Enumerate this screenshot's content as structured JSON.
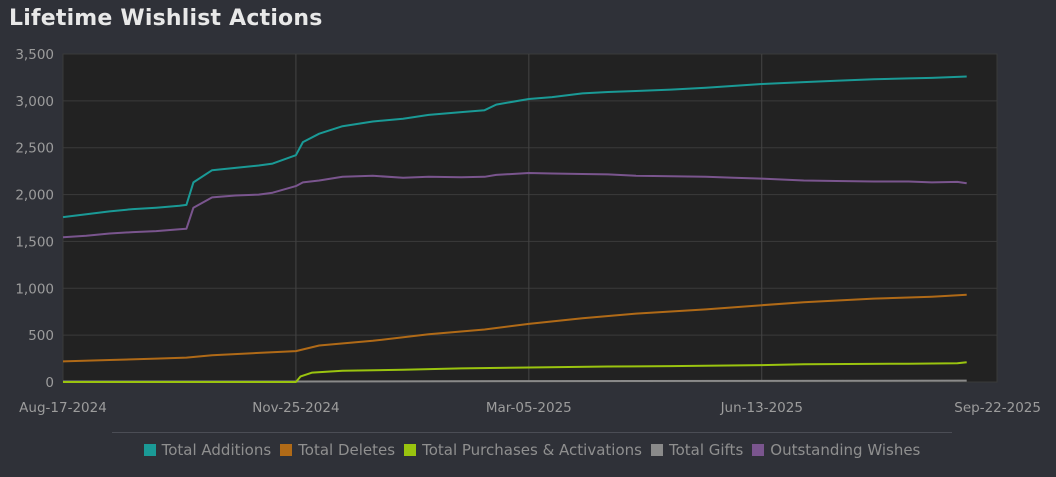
{
  "title": "Lifetime Wishlist Actions",
  "chart_data": {
    "type": "line",
    "title": "Lifetime Wishlist Actions",
    "xlabel": "",
    "ylabel": "",
    "x_ticks": [
      "Aug-17-2024",
      "Nov-25-2024",
      "Mar-05-2025",
      "Jun-13-2025",
      "Sep-22-2025"
    ],
    "x_range": [
      "2024-08-17",
      "2025-09-22"
    ],
    "ylim": [
      0,
      3500
    ],
    "y_ticks": [
      0,
      500,
      1000,
      1500,
      2000,
      2500,
      3000,
      3500
    ],
    "y_tick_labels": [
      "0",
      "500",
      "1,000",
      "1,500",
      "2,000",
      "2,500",
      "3,000",
      "3,500"
    ],
    "grid": true,
    "legend_position": "bottom",
    "series": [
      {
        "name": "Total Additions",
        "color": "#1a9a96",
        "points": [
          [
            "2024-08-17",
            1760
          ],
          [
            "2024-08-27",
            1790
          ],
          [
            "2024-09-06",
            1820
          ],
          [
            "2024-09-16",
            1845
          ],
          [
            "2024-09-26",
            1860
          ],
          [
            "2024-10-06",
            1880
          ],
          [
            "2024-10-09",
            1890
          ],
          [
            "2024-10-12",
            2130
          ],
          [
            "2024-10-20",
            2260
          ],
          [
            "2024-10-30",
            2285
          ],
          [
            "2024-11-09",
            2310
          ],
          [
            "2024-11-15",
            2330
          ],
          [
            "2024-11-25",
            2420
          ],
          [
            "2024-11-28",
            2560
          ],
          [
            "2024-12-05",
            2650
          ],
          [
            "2024-12-15",
            2730
          ],
          [
            "2024-12-28",
            2780
          ],
          [
            "2025-01-10",
            2810
          ],
          [
            "2025-01-21",
            2850
          ],
          [
            "2025-02-04",
            2880
          ],
          [
            "2025-02-14",
            2900
          ],
          [
            "2025-02-19",
            2960
          ],
          [
            "2025-03-05",
            3020
          ],
          [
            "2025-03-15",
            3040
          ],
          [
            "2025-03-28",
            3080
          ],
          [
            "2025-04-08",
            3095
          ],
          [
            "2025-04-20",
            3105
          ],
          [
            "2025-05-05",
            3120
          ],
          [
            "2025-05-20",
            3140
          ],
          [
            "2025-06-01",
            3160
          ],
          [
            "2025-06-13",
            3180
          ],
          [
            "2025-07-01",
            3200
          ],
          [
            "2025-07-15",
            3215
          ],
          [
            "2025-07-31",
            3230
          ],
          [
            "2025-08-15",
            3240
          ],
          [
            "2025-08-25",
            3245
          ],
          [
            "2025-09-09",
            3260
          ]
        ]
      },
      {
        "name": "Total Deletes",
        "color": "#b06a17",
        "points": [
          [
            "2024-08-17",
            220
          ],
          [
            "2024-09-06",
            235
          ],
          [
            "2024-09-26",
            250
          ],
          [
            "2024-10-09",
            260
          ],
          [
            "2024-10-20",
            285
          ],
          [
            "2024-11-09",
            310
          ],
          [
            "2024-11-25",
            330
          ],
          [
            "2024-12-05",
            390
          ],
          [
            "2024-12-28",
            440
          ],
          [
            "2025-01-21",
            510
          ],
          [
            "2025-02-14",
            560
          ],
          [
            "2025-03-05",
            620
          ],
          [
            "2025-03-28",
            680
          ],
          [
            "2025-04-20",
            730
          ],
          [
            "2025-05-20",
            775
          ],
          [
            "2025-06-13",
            820
          ],
          [
            "2025-07-01",
            850
          ],
          [
            "2025-07-31",
            890
          ],
          [
            "2025-08-25",
            910
          ],
          [
            "2025-09-09",
            930
          ]
        ]
      },
      {
        "name": "Total Purchases & Activations",
        "color": "#9ac40f",
        "points": [
          [
            "2024-08-17",
            0
          ],
          [
            "2024-11-25",
            0
          ],
          [
            "2024-11-27",
            60
          ],
          [
            "2024-12-02",
            100
          ],
          [
            "2024-12-15",
            120
          ],
          [
            "2025-01-10",
            130
          ],
          [
            "2025-02-04",
            145
          ],
          [
            "2025-03-05",
            155
          ],
          [
            "2025-04-08",
            165
          ],
          [
            "2025-05-05",
            170
          ],
          [
            "2025-06-13",
            180
          ],
          [
            "2025-07-01",
            190
          ],
          [
            "2025-08-15",
            195
          ],
          [
            "2025-09-05",
            200
          ],
          [
            "2025-09-09",
            210
          ]
        ]
      },
      {
        "name": "Total Gifts",
        "color": "#8a8a8a",
        "points": [
          [
            "2024-08-17",
            5
          ],
          [
            "2024-11-25",
            5
          ],
          [
            "2025-03-05",
            10
          ],
          [
            "2025-06-13",
            12
          ],
          [
            "2025-09-09",
            15
          ]
        ]
      },
      {
        "name": "Outstanding Wishes",
        "color": "#7a558e",
        "points": [
          [
            "2024-08-17",
            1545
          ],
          [
            "2024-08-27",
            1560
          ],
          [
            "2024-09-06",
            1585
          ],
          [
            "2024-09-16",
            1600
          ],
          [
            "2024-09-26",
            1610
          ],
          [
            "2024-10-06",
            1630
          ],
          [
            "2024-10-09",
            1635
          ],
          [
            "2024-10-12",
            1860
          ],
          [
            "2024-10-20",
            1970
          ],
          [
            "2024-10-30",
            1990
          ],
          [
            "2024-11-09",
            2000
          ],
          [
            "2024-11-15",
            2020
          ],
          [
            "2024-11-25",
            2090
          ],
          [
            "2024-11-28",
            2130
          ],
          [
            "2024-12-05",
            2150
          ],
          [
            "2024-12-15",
            2190
          ],
          [
            "2024-12-28",
            2200
          ],
          [
            "2025-01-10",
            2180
          ],
          [
            "2025-01-21",
            2190
          ],
          [
            "2025-02-04",
            2185
          ],
          [
            "2025-02-14",
            2190
          ],
          [
            "2025-02-19",
            2210
          ],
          [
            "2025-03-05",
            2230
          ],
          [
            "2025-03-15",
            2225
          ],
          [
            "2025-03-28",
            2220
          ],
          [
            "2025-04-08",
            2215
          ],
          [
            "2025-04-20",
            2200
          ],
          [
            "2025-05-05",
            2195
          ],
          [
            "2025-05-20",
            2190
          ],
          [
            "2025-06-01",
            2180
          ],
          [
            "2025-06-13",
            2170
          ],
          [
            "2025-07-01",
            2150
          ],
          [
            "2025-07-15",
            2145
          ],
          [
            "2025-07-31",
            2140
          ],
          [
            "2025-08-15",
            2140
          ],
          [
            "2025-08-25",
            2130
          ],
          [
            "2025-09-05",
            2135
          ],
          [
            "2025-09-09",
            2120
          ]
        ]
      }
    ]
  }
}
